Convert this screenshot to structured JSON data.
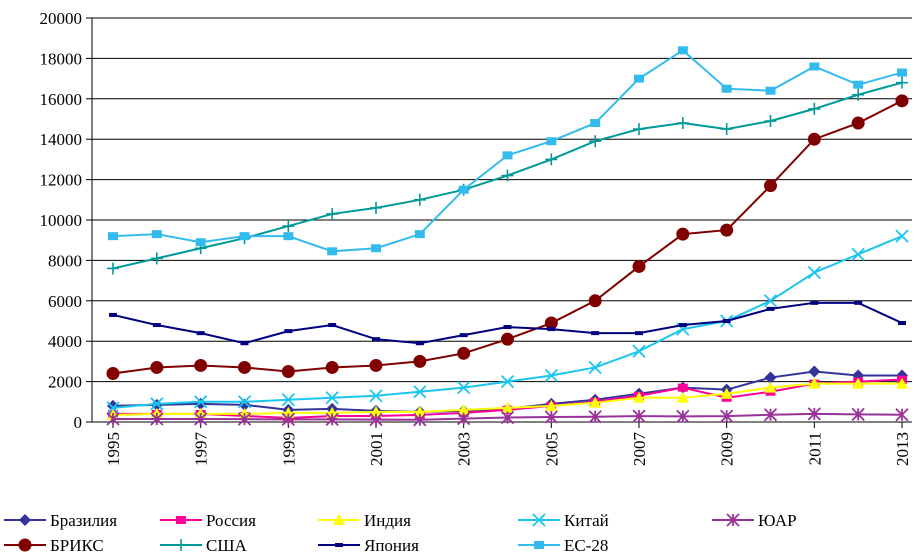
{
  "chart_data": {
    "type": "line",
    "x": [
      1995,
      1996,
      1997,
      1998,
      1999,
      2000,
      2001,
      2002,
      2003,
      2004,
      2005,
      2006,
      2007,
      2008,
      2009,
      2010,
      2011,
      2012,
      2013
    ],
    "xlim": [
      1995,
      2013
    ],
    "xticks": [
      1995,
      1997,
      1999,
      2001,
      2003,
      2005,
      2007,
      2009,
      2011,
      2013
    ],
    "ylim": [
      0,
      20000
    ],
    "yticks": [
      0,
      2000,
      4000,
      6000,
      8000,
      10000,
      12000,
      14000,
      16000,
      18000,
      20000
    ],
    "grid": true,
    "legend": "bottom",
    "series": [
      {
        "name": "Бразилия",
        "color": "#333399",
        "marker": "diamond",
        "values": [
          800,
          850,
          900,
          850,
          600,
          650,
          550,
          500,
          550,
          650,
          900,
          1100,
          1400,
          1700,
          1600,
          2200,
          2500,
          2300,
          2300
        ]
      },
      {
        "name": "Россия",
        "color": "#ff0099",
        "marker": "square",
        "values": [
          400,
          400,
          400,
          300,
          200,
          300,
          300,
          350,
          450,
          600,
          800,
          1000,
          1300,
          1700,
          1200,
          1500,
          1900,
          2000,
          2100
        ]
      },
      {
        "name": "Индия",
        "color": "#ffff00",
        "marker": "triangle",
        "values": [
          350,
          400,
          400,
          400,
          450,
          450,
          500,
          500,
          600,
          700,
          800,
          950,
          1200,
          1200,
          1400,
          1700,
          1900,
          1900,
          1900
        ]
      },
      {
        "name": "Китай",
        "color": "#1ac6ee",
        "marker": "x",
        "values": [
          700,
          900,
          1000,
          1000,
          1100,
          1200,
          1300,
          1500,
          1700,
          2000,
          2300,
          2700,
          3500,
          4600,
          5000,
          6000,
          7400,
          8300,
          9200
        ]
      },
      {
        "name": "ЮАР",
        "color": "#993399",
        "marker": "asterisk",
        "values": [
          150,
          150,
          150,
          140,
          130,
          130,
          120,
          110,
          170,
          220,
          250,
          260,
          290,
          280,
          290,
          360,
          400,
          380,
          360
        ]
      },
      {
        "name": "БРИКС",
        "color": "#800000",
        "marker": "circle",
        "values": [
          2400,
          2700,
          2800,
          2700,
          2500,
          2700,
          2800,
          3000,
          3400,
          4100,
          4900,
          6000,
          7700,
          9300,
          9500,
          11700,
          14000,
          14800,
          15900
        ]
      },
      {
        "name": "США",
        "color": "#009999",
        "marker": "plus",
        "values": [
          7600,
          8100,
          8600,
          9100,
          9700,
          10300,
          10600,
          11000,
          11500,
          12200,
          13000,
          13900,
          14500,
          14800,
          14500,
          14900,
          15500,
          16200,
          16800
        ]
      },
      {
        "name": "Япония",
        "color": "#000080",
        "marker": "dash",
        "values": [
          5300,
          4800,
          4400,
          3900,
          4500,
          4800,
          4100,
          3900,
          4300,
          4700,
          4600,
          4400,
          4400,
          4800,
          5000,
          5600,
          5900,
          5900,
          4900
        ]
      },
      {
        "name": "ЕС-28",
        "color": "#33bbee",
        "marker": "square",
        "values": [
          9200,
          9300,
          8900,
          9200,
          9200,
          8450,
          8600,
          9300,
          11500,
          13200,
          13900,
          14800,
          17000,
          18400,
          16500,
          16400,
          17600,
          16700,
          17300
        ]
      }
    ]
  }
}
